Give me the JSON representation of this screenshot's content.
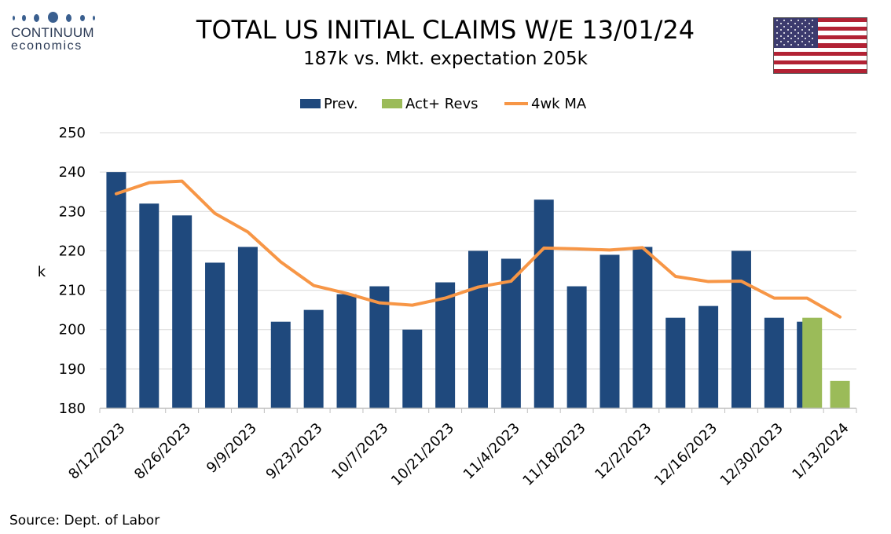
{
  "header": {
    "logo_name": "CONTINUUM",
    "logo_sub": "economics",
    "title": "TOTAL US INITIAL CLAIMS W/E 13/01/24",
    "subtitle": "187k vs. Mkt. expectation 205k"
  },
  "flag": {
    "icon": "us-flag-icon"
  },
  "colors": {
    "prev": "#1f497d",
    "act": "#9bbb59",
    "ma": "#f79646",
    "grid": "#d9d9d9",
    "axis": "#bfbfbf"
  },
  "chart_data": {
    "type": "bar",
    "ylabel": "k",
    "ylim": [
      180,
      250
    ],
    "yticks": [
      "180",
      "190",
      "200",
      "210",
      "220",
      "230",
      "240",
      "250"
    ],
    "grid": true,
    "legend_position": "top",
    "tick_labels": [
      "8/12/2023",
      "8/26/2023",
      "9/9/2023",
      "9/23/2023",
      "10/7/2023",
      "10/21/2023",
      "11/4/2023",
      "11/18/2023",
      "12/2/2023",
      "12/16/2023",
      "12/30/2023",
      "1/13/2024"
    ],
    "categories": [
      "8/12/2023",
      "8/19/2023",
      "8/26/2023",
      "9/2/2023",
      "9/9/2023",
      "9/16/2023",
      "9/23/2023",
      "9/30/2023",
      "10/7/2023",
      "10/14/2023",
      "10/21/2023",
      "10/28/2023",
      "11/4/2023",
      "11/11/2023",
      "11/18/2023",
      "11/25/2023",
      "12/2/2023",
      "12/9/2023",
      "12/16/2023",
      "12/23/2023",
      "12/30/2023",
      "1/6/2024",
      "1/13/2024"
    ],
    "series": [
      {
        "name": "Prev.",
        "kind": "bar",
        "values": [
          240,
          232,
          229,
          217,
          221,
          202,
          205,
          209,
          211,
          200,
          212,
          220,
          218,
          233,
          211,
          219,
          221,
          203,
          206,
          220,
          203,
          202,
          null
        ]
      },
      {
        "name": "Act+ Revs",
        "kind": "bar",
        "values": [
          null,
          null,
          null,
          null,
          null,
          null,
          null,
          null,
          null,
          null,
          null,
          null,
          null,
          null,
          null,
          null,
          null,
          null,
          null,
          null,
          null,
          203,
          187
        ]
      },
      {
        "name": "4wk MA",
        "kind": "line",
        "values": [
          234.5,
          237.3,
          237.7,
          229.5,
          224.8,
          217.2,
          211.2,
          209.2,
          206.8,
          206.2,
          208,
          210.8,
          212.3,
          220.7,
          220.5,
          220.2,
          220.8,
          213.5,
          212.2,
          212.3,
          208,
          208,
          203.2
        ]
      }
    ]
  },
  "source": "Source: Dept. of Labor"
}
